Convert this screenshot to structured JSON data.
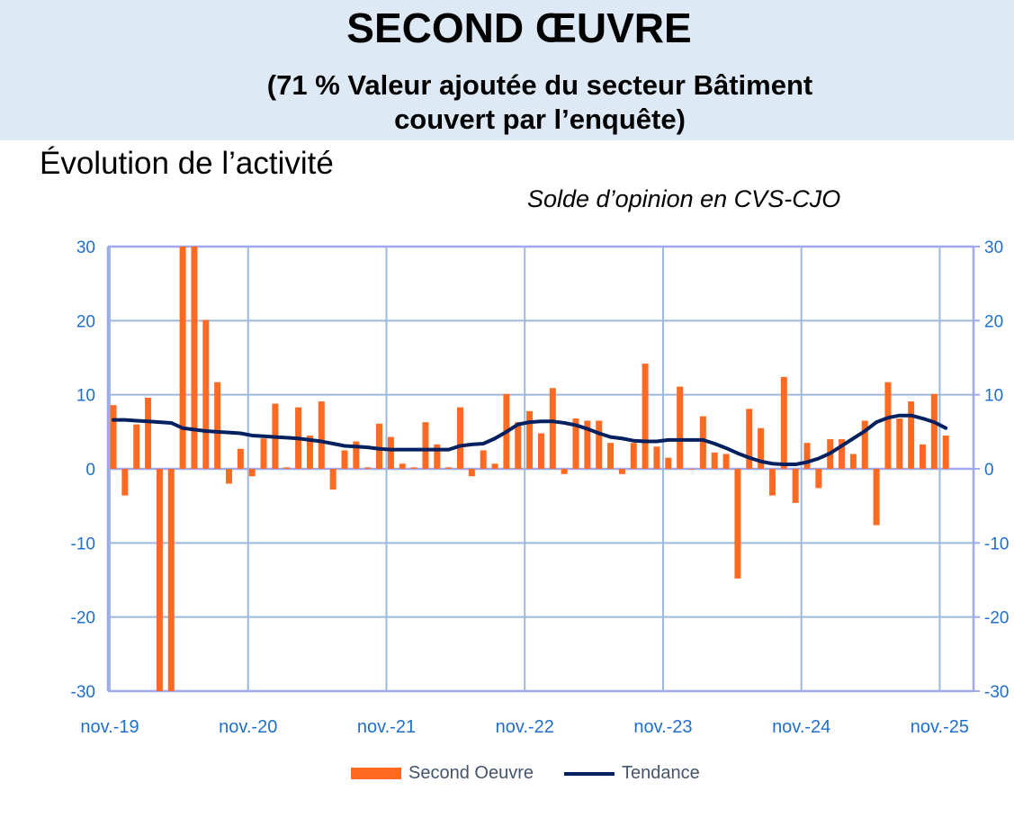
{
  "header": {
    "title": "SECOND ŒUVRE",
    "subtitle_line1": "(71 % Valeur ajoutée du secteur Bâtiment",
    "subtitle_line2": "couvert par l’enquête)"
  },
  "section_title": "Évolution de l’activité",
  "unit_label": "Solde d’opinion en CVS-CJO",
  "colors": {
    "bars": "#ff6a22",
    "trend": "#002060",
    "grid": "#9db8dc",
    "axis": "#a0a8f0",
    "ticks": "#1f6fd0",
    "header_bg": "#dde9f5"
  },
  "chart_data": {
    "type": "bar+line",
    "x_tick_labels": [
      "nov.-19",
      "nov.-20",
      "nov.-21",
      "nov.-22",
      "nov.-23",
      "nov.-24",
      "nov.-25"
    ],
    "x_range": [
      "nov.-19",
      "nov.-25"
    ],
    "frequency": "monthly",
    "ylim": [
      -30,
      30
    ],
    "y_ticks": [
      "30",
      "20",
      "10",
      "0",
      "-10",
      "-20",
      "-30"
    ],
    "secondary_y_ticks": [
      "30",
      "20",
      "10",
      "0",
      "-10",
      "-20",
      "-30"
    ],
    "grid": true,
    "legend_position": "bottom",
    "series": [
      {
        "name": "Second Oeuvre",
        "type": "bar",
        "values": [
          8.6,
          -3.6,
          6.0,
          9.6,
          -30,
          -30,
          30,
          30,
          20.1,
          11.7,
          -2.0,
          2.7,
          -1.0,
          4.1,
          8.8,
          0.2,
          8.3,
          4.5,
          9.1,
          -2.8,
          2.5,
          3.7,
          0.2,
          6.1,
          4.3,
          0.7,
          0.2,
          6.3,
          3.3,
          0.2,
          8.3,
          -1.0,
          2.5,
          0.7,
          10.1,
          6.3,
          7.8,
          4.8,
          10.9,
          -0.7,
          6.8,
          6.5,
          6.5,
          3.5,
          -0.7,
          3.5,
          14.2,
          3.0,
          1.5,
          11.1,
          0,
          7.1,
          2.2,
          2.0,
          -14.8,
          8.1,
          5.5,
          -3.6,
          12.4,
          -4.6,
          3.5,
          -2.6,
          4.0,
          4.0,
          2.0,
          6.5,
          -7.6,
          11.7,
          6.8,
          9.1,
          3.3,
          10.1,
          4.5
        ]
      },
      {
        "name": "Tendance",
        "type": "line",
        "values": [
          6.6,
          6.6,
          6.5,
          6.4,
          6.3,
          6.2,
          5.5,
          5.3,
          5.1,
          5.0,
          4.9,
          4.8,
          4.5,
          4.4,
          4.3,
          4.2,
          4.1,
          3.9,
          3.7,
          3.4,
          3.1,
          3.0,
          2.9,
          2.7,
          2.6,
          2.6,
          2.6,
          2.6,
          2.6,
          2.6,
          3.1,
          3.3,
          3.4,
          4.1,
          5.0,
          6.0,
          6.3,
          6.4,
          6.4,
          6.2,
          5.9,
          5.4,
          4.8,
          4.3,
          4.1,
          3.8,
          3.7,
          3.7,
          3.9,
          3.9,
          3.9,
          3.9,
          3.4,
          2.8,
          2.1,
          1.5,
          1.0,
          0.7,
          0.6,
          0.6,
          0.9,
          1.4,
          2.1,
          3.1,
          4.1,
          5.1,
          6.3,
          6.9,
          7.2,
          7.2,
          6.8,
          6.3,
          5.5
        ]
      }
    ]
  }
}
